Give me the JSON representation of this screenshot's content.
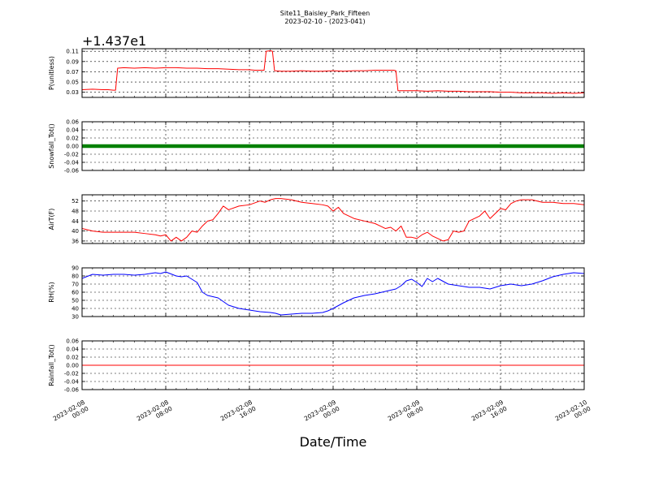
{
  "figure": {
    "title_line1": "Site11_Baisley_Park_Fifteen",
    "title_line2": "2023-02-10 - (2023-041)",
    "xlabel": "Date/Time",
    "x_ticks": [
      {
        "line1": "2023-02-08",
        "line2": "00:00",
        "hours": 0
      },
      {
        "line1": "2023-02-08",
        "line2": "08:00",
        "hours": 8
      },
      {
        "line1": "2023-02-08",
        "line2": "16:00",
        "hours": 16
      },
      {
        "line1": "2023-02-09",
        "line2": "00:00",
        "hours": 24
      },
      {
        "line1": "2023-02-09",
        "line2": "08:00",
        "hours": 32
      },
      {
        "line1": "2023-02-09",
        "line2": "16:00",
        "hours": 40
      },
      {
        "line1": "2023-02-10",
        "line2": "00:00",
        "hours": 48
      }
    ]
  },
  "chart_data": [
    {
      "type": "line",
      "ylabel": "P(unitless)",
      "offset_label": "+1.437e1",
      "color": "#ff0000",
      "ylim": [
        0.02,
        0.115
      ],
      "yticks": [
        "0.03",
        "0.05",
        "0.07",
        "0.09",
        "0.11"
      ],
      "ytick_values": [
        0.03,
        0.05,
        0.07,
        0.09,
        0.11
      ],
      "series": [
        {
          "x": [
            0,
            1,
            2,
            2.5,
            3,
            3.2,
            3.4,
            4,
            5,
            6,
            7,
            8,
            9,
            10,
            11,
            12,
            13,
            14,
            15,
            16,
            16.5,
            17,
            17.4,
            17.6,
            18,
            18.2,
            18.4,
            19,
            20,
            21,
            22,
            23,
            24,
            25,
            26,
            27,
            28,
            29,
            29.8,
            30,
            30.2,
            31,
            32,
            33,
            34,
            35,
            36,
            37,
            38,
            39,
            40,
            41,
            42,
            43,
            44,
            45,
            46,
            47,
            48
          ],
          "y": [
            0.035,
            0.036,
            0.035,
            0.035,
            0.034,
            0.034,
            0.077,
            0.078,
            0.077,
            0.078,
            0.077,
            0.078,
            0.078,
            0.077,
            0.077,
            0.076,
            0.076,
            0.075,
            0.074,
            0.074,
            0.073,
            0.073,
            0.073,
            0.11,
            0.111,
            0.11,
            0.072,
            0.071,
            0.071,
            0.072,
            0.071,
            0.071,
            0.072,
            0.071,
            0.072,
            0.072,
            0.073,
            0.073,
            0.073,
            0.072,
            0.033,
            0.033,
            0.033,
            0.032,
            0.033,
            0.032,
            0.032,
            0.031,
            0.031,
            0.031,
            0.03,
            0.03,
            0.029,
            0.029,
            0.029,
            0.028,
            0.029,
            0.028,
            0.029
          ]
        }
      ]
    },
    {
      "type": "line",
      "ylabel": "Snowfall_Tot()",
      "color": "#008000",
      "marker": "dot",
      "ylim": [
        -0.06,
        0.06
      ],
      "yticks": [
        "-0.06",
        "-0.04",
        "-0.02",
        "0.00",
        "0.02",
        "0.04",
        "0.06"
      ],
      "ytick_values": [
        -0.06,
        -0.04,
        -0.02,
        0.0,
        0.02,
        0.04,
        0.06
      ],
      "series": [
        {
          "x": [
            0,
            48
          ],
          "y": [
            0,
            0
          ]
        }
      ]
    },
    {
      "type": "line",
      "ylabel": "AirT(F)",
      "color": "#ff0000",
      "ylim": [
        35,
        54.5
      ],
      "yticks": [
        "36",
        "40",
        "44",
        "48",
        "52"
      ],
      "ytick_values": [
        36,
        40,
        44,
        48,
        52
      ],
      "series": [
        {
          "x": [
            0,
            1,
            2,
            3,
            4,
            5,
            6,
            7,
            7.5,
            8,
            8.5,
            9,
            9.5,
            10,
            10.5,
            11,
            11.5,
            12,
            12.5,
            13,
            13.5,
            14,
            15,
            16,
            17,
            17.5,
            18,
            18.5,
            19,
            20,
            21,
            22,
            23,
            23.5,
            24,
            24.5,
            25,
            26,
            27,
            27.5,
            28,
            28.5,
            29,
            29.5,
            30,
            30.5,
            31,
            31.5,
            32,
            32.5,
            33,
            33.5,
            34,
            34.5,
            35,
            35.5,
            36,
            36.5,
            37,
            38,
            38.5,
            39,
            40,
            40.5,
            41,
            41.5,
            42,
            43,
            44,
            45,
            46,
            47,
            48
          ],
          "y": [
            41,
            40,
            39.5,
            39.5,
            39.5,
            39.5,
            39,
            38.5,
            38,
            38.5,
            36,
            37.5,
            36,
            37.5,
            40,
            39.5,
            42,
            44,
            44.5,
            47,
            50,
            48.5,
            50,
            50.5,
            52,
            51.5,
            52.5,
            53,
            53,
            52.5,
            51.5,
            51,
            50.5,
            50,
            48,
            49.5,
            47,
            45,
            44,
            43.5,
            43,
            42,
            41,
            41.5,
            40,
            42,
            37.5,
            37.5,
            37,
            38.5,
            39.5,
            38,
            37,
            36,
            36.5,
            40,
            39.5,
            40,
            44,
            46,
            48,
            45,
            49,
            48.5,
            51,
            52,
            52.5,
            52.5,
            51.5,
            51.5,
            51,
            51,
            50.5
          ]
        }
      ]
    },
    {
      "type": "line",
      "ylabel": "RH(%)",
      "color": "#0000ff",
      "ylim": [
        30,
        90
      ],
      "yticks": [
        "30",
        "40",
        "50",
        "60",
        "70",
        "80",
        "90"
      ],
      "ytick_values": [
        30,
        40,
        50,
        60,
        70,
        80,
        90
      ],
      "series": [
        {
          "x": [
            0,
            1,
            2,
            3,
            4,
            5,
            6,
            7,
            7.5,
            8,
            9,
            9.5,
            10,
            10.5,
            11,
            11.5,
            12,
            13,
            14,
            15,
            16,
            17,
            18,
            18.5,
            19,
            20,
            21,
            22,
            23,
            23.5,
            24,
            25,
            26,
            27,
            28,
            29,
            30,
            30.5,
            31,
            31.5,
            32,
            32.5,
            33,
            33.5,
            34,
            35,
            36,
            37,
            38,
            39,
            40,
            41,
            42,
            43,
            44,
            45,
            46,
            47,
            48
          ],
          "y": [
            77,
            82,
            81,
            82,
            82,
            81,
            82,
            84,
            83,
            85,
            80,
            79,
            80,
            76,
            72,
            60,
            56,
            53,
            44,
            40,
            38,
            36,
            35,
            34,
            32,
            33,
            34,
            34,
            35,
            37,
            40,
            47,
            53,
            56,
            58,
            61,
            64,
            68,
            74,
            76,
            72,
            67,
            77,
            73,
            77,
            70,
            68,
            66,
            66,
            64,
            68,
            70,
            68,
            70,
            74,
            79,
            82,
            84,
            83
          ]
        }
      ]
    },
    {
      "type": "line",
      "ylabel": "Rainfall_Tot()",
      "color": "#ff0000",
      "ylim": [
        -0.06,
        0.06
      ],
      "yticks": [
        "-0.06",
        "-0.04",
        "-0.02",
        "0.00",
        "0.02",
        "0.04",
        "0.06"
      ],
      "ytick_values": [
        -0.06,
        -0.04,
        -0.02,
        0.0,
        0.02,
        0.04,
        0.06
      ],
      "series": [
        {
          "x": [
            0,
            48
          ],
          "y": [
            0,
            0
          ]
        }
      ]
    }
  ]
}
